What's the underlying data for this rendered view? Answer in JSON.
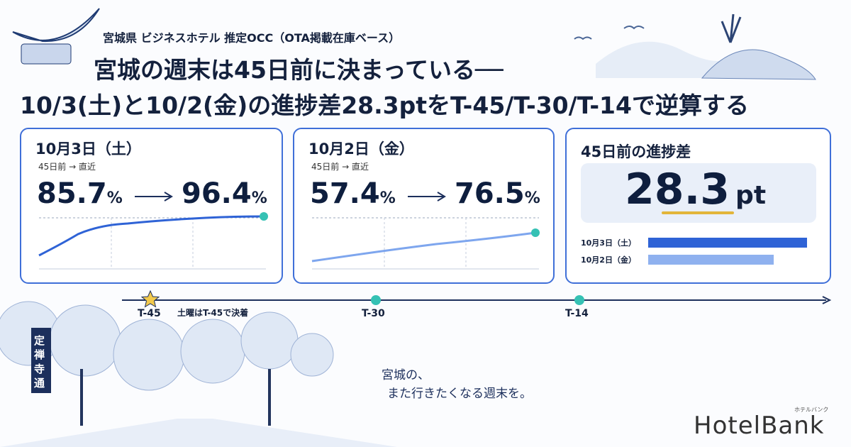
{
  "header": {
    "subtitle": "宮城県 ビジネスホテル 推定OCC（OTA掲載在庫ベース）",
    "title_line1": "宮城の週末は45日前に決まっている──",
    "title_line2": "10/3(土)と10/2(金)の進捗差28.3ptをT-45/T-30/T-14で逆算する"
  },
  "cards": [
    {
      "title": "10月3日（土）",
      "caption": "45日前 → 直近",
      "start": 85.7,
      "end": 96.4,
      "unit": "%"
    },
    {
      "title": "10月2日（金）",
      "caption": "45日前 → 直近",
      "start": 57.4,
      "end": 76.5,
      "unit": "%"
    }
  ],
  "gap": {
    "title": "45日前の進捗差",
    "value": 28.3,
    "unit": "pt",
    "bar_labels": [
      "10月3日（土）",
      "10月2日（金）"
    ]
  },
  "timeline": {
    "points": [
      "T-45",
      "T-30",
      "T-14"
    ],
    "note": "土曜はT-45で決着"
  },
  "sign": "定禅寺通",
  "tagline": [
    "宮城の、",
    "また行きたくなる週末を。"
  ],
  "logo": {
    "name": "HotelBank",
    "kana": "ホテルバンク"
  }
}
